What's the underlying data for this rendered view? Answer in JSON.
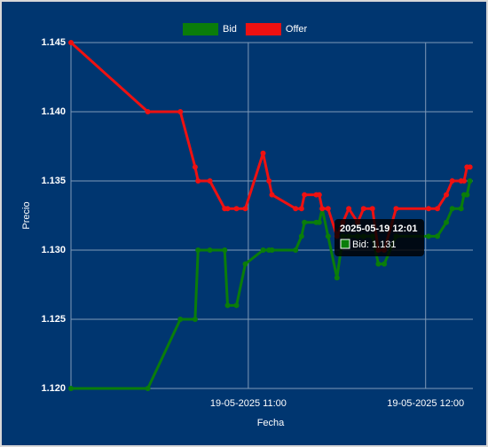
{
  "chart_data": {
    "type": "line",
    "legend": "top",
    "grid": true,
    "x_label": "Fecha",
    "y_label": "Precio",
    "x": [
      "2025-05-19 10:00",
      "2025-05-19 10:26",
      "2025-05-19 10:37",
      "2025-05-19 10:42",
      "2025-05-19 10:43",
      "2025-05-19 10:47",
      "2025-05-19 10:52",
      "2025-05-19 10:53",
      "2025-05-19 10:56",
      "2025-05-19 10:59",
      "2025-05-19 11:05",
      "2025-05-19 11:07",
      "2025-05-19 11:08",
      "2025-05-19 11:16",
      "2025-05-19 11:18",
      "2025-05-19 11:19",
      "2025-05-19 11:23",
      "2025-05-19 11:24",
      "2025-05-19 11:25",
      "2025-05-19 11:27",
      "2025-05-19 11:30",
      "2025-05-19 11:32",
      "2025-05-19 11:34",
      "2025-05-19 11:37",
      "2025-05-19 11:39",
      "2025-05-19 11:42",
      "2025-05-19 11:44",
      "2025-05-19 11:46",
      "2025-05-19 11:50",
      "2025-05-19 12:01",
      "2025-05-19 12:04",
      "2025-05-19 12:07",
      "2025-05-19 12:09",
      "2025-05-19 12:12",
      "2025-05-19 12:13",
      "2025-05-19 12:14",
      "2025-05-19 12:15"
    ],
    "series": [
      {
        "name": "Bid",
        "color": "#0a7d0a",
        "values": [
          1.12,
          1.12,
          1.125,
          1.125,
          1.13,
          1.13,
          1.13,
          1.126,
          1.126,
          1.129,
          1.13,
          1.13,
          1.13,
          1.13,
          1.131,
          1.132,
          1.132,
          1.132,
          1.133,
          1.131,
          1.128,
          1.131,
          1.131,
          1.131,
          1.131,
          1.131,
          1.129,
          1.129,
          1.131,
          1.131,
          1.131,
          1.132,
          1.133,
          1.133,
          1.134,
          1.134,
          1.135
        ]
      },
      {
        "name": "Offer",
        "color": "#ee1111",
        "values": [
          1.145,
          1.14,
          1.14,
          1.136,
          1.135,
          1.135,
          1.133,
          1.133,
          1.133,
          1.133,
          1.137,
          1.135,
          1.134,
          1.133,
          1.133,
          1.134,
          1.134,
          1.134,
          1.133,
          1.133,
          1.131,
          1.132,
          1.133,
          1.132,
          1.133,
          1.133,
          1.13,
          1.13,
          1.133,
          1.133,
          1.133,
          1.134,
          1.135,
          1.135,
          1.135,
          1.136,
          1.136
        ]
      }
    ],
    "xlim": [
      "2025-05-19 10:00",
      "2025-05-19 12:16"
    ],
    "xticks": [
      {
        "value": "2025-05-19 11:00",
        "label": "19-05-2025 11:00"
      },
      {
        "value": "2025-05-19 12:00",
        "label": "19-05-2025 12:00"
      }
    ],
    "ylim": [
      1.12,
      1.145
    ],
    "yticks": [
      {
        "value": 1.12,
        "label": "1.120"
      },
      1.125,
      {
        "value": 1.13,
        "label": "1.130"
      },
      1.135,
      {
        "value": 1.14,
        "label": "1.140"
      },
      1.145
    ],
    "tooltip": {
      "title": "2025-05-19 12:01",
      "label": "Bid: 1.131"
    }
  }
}
